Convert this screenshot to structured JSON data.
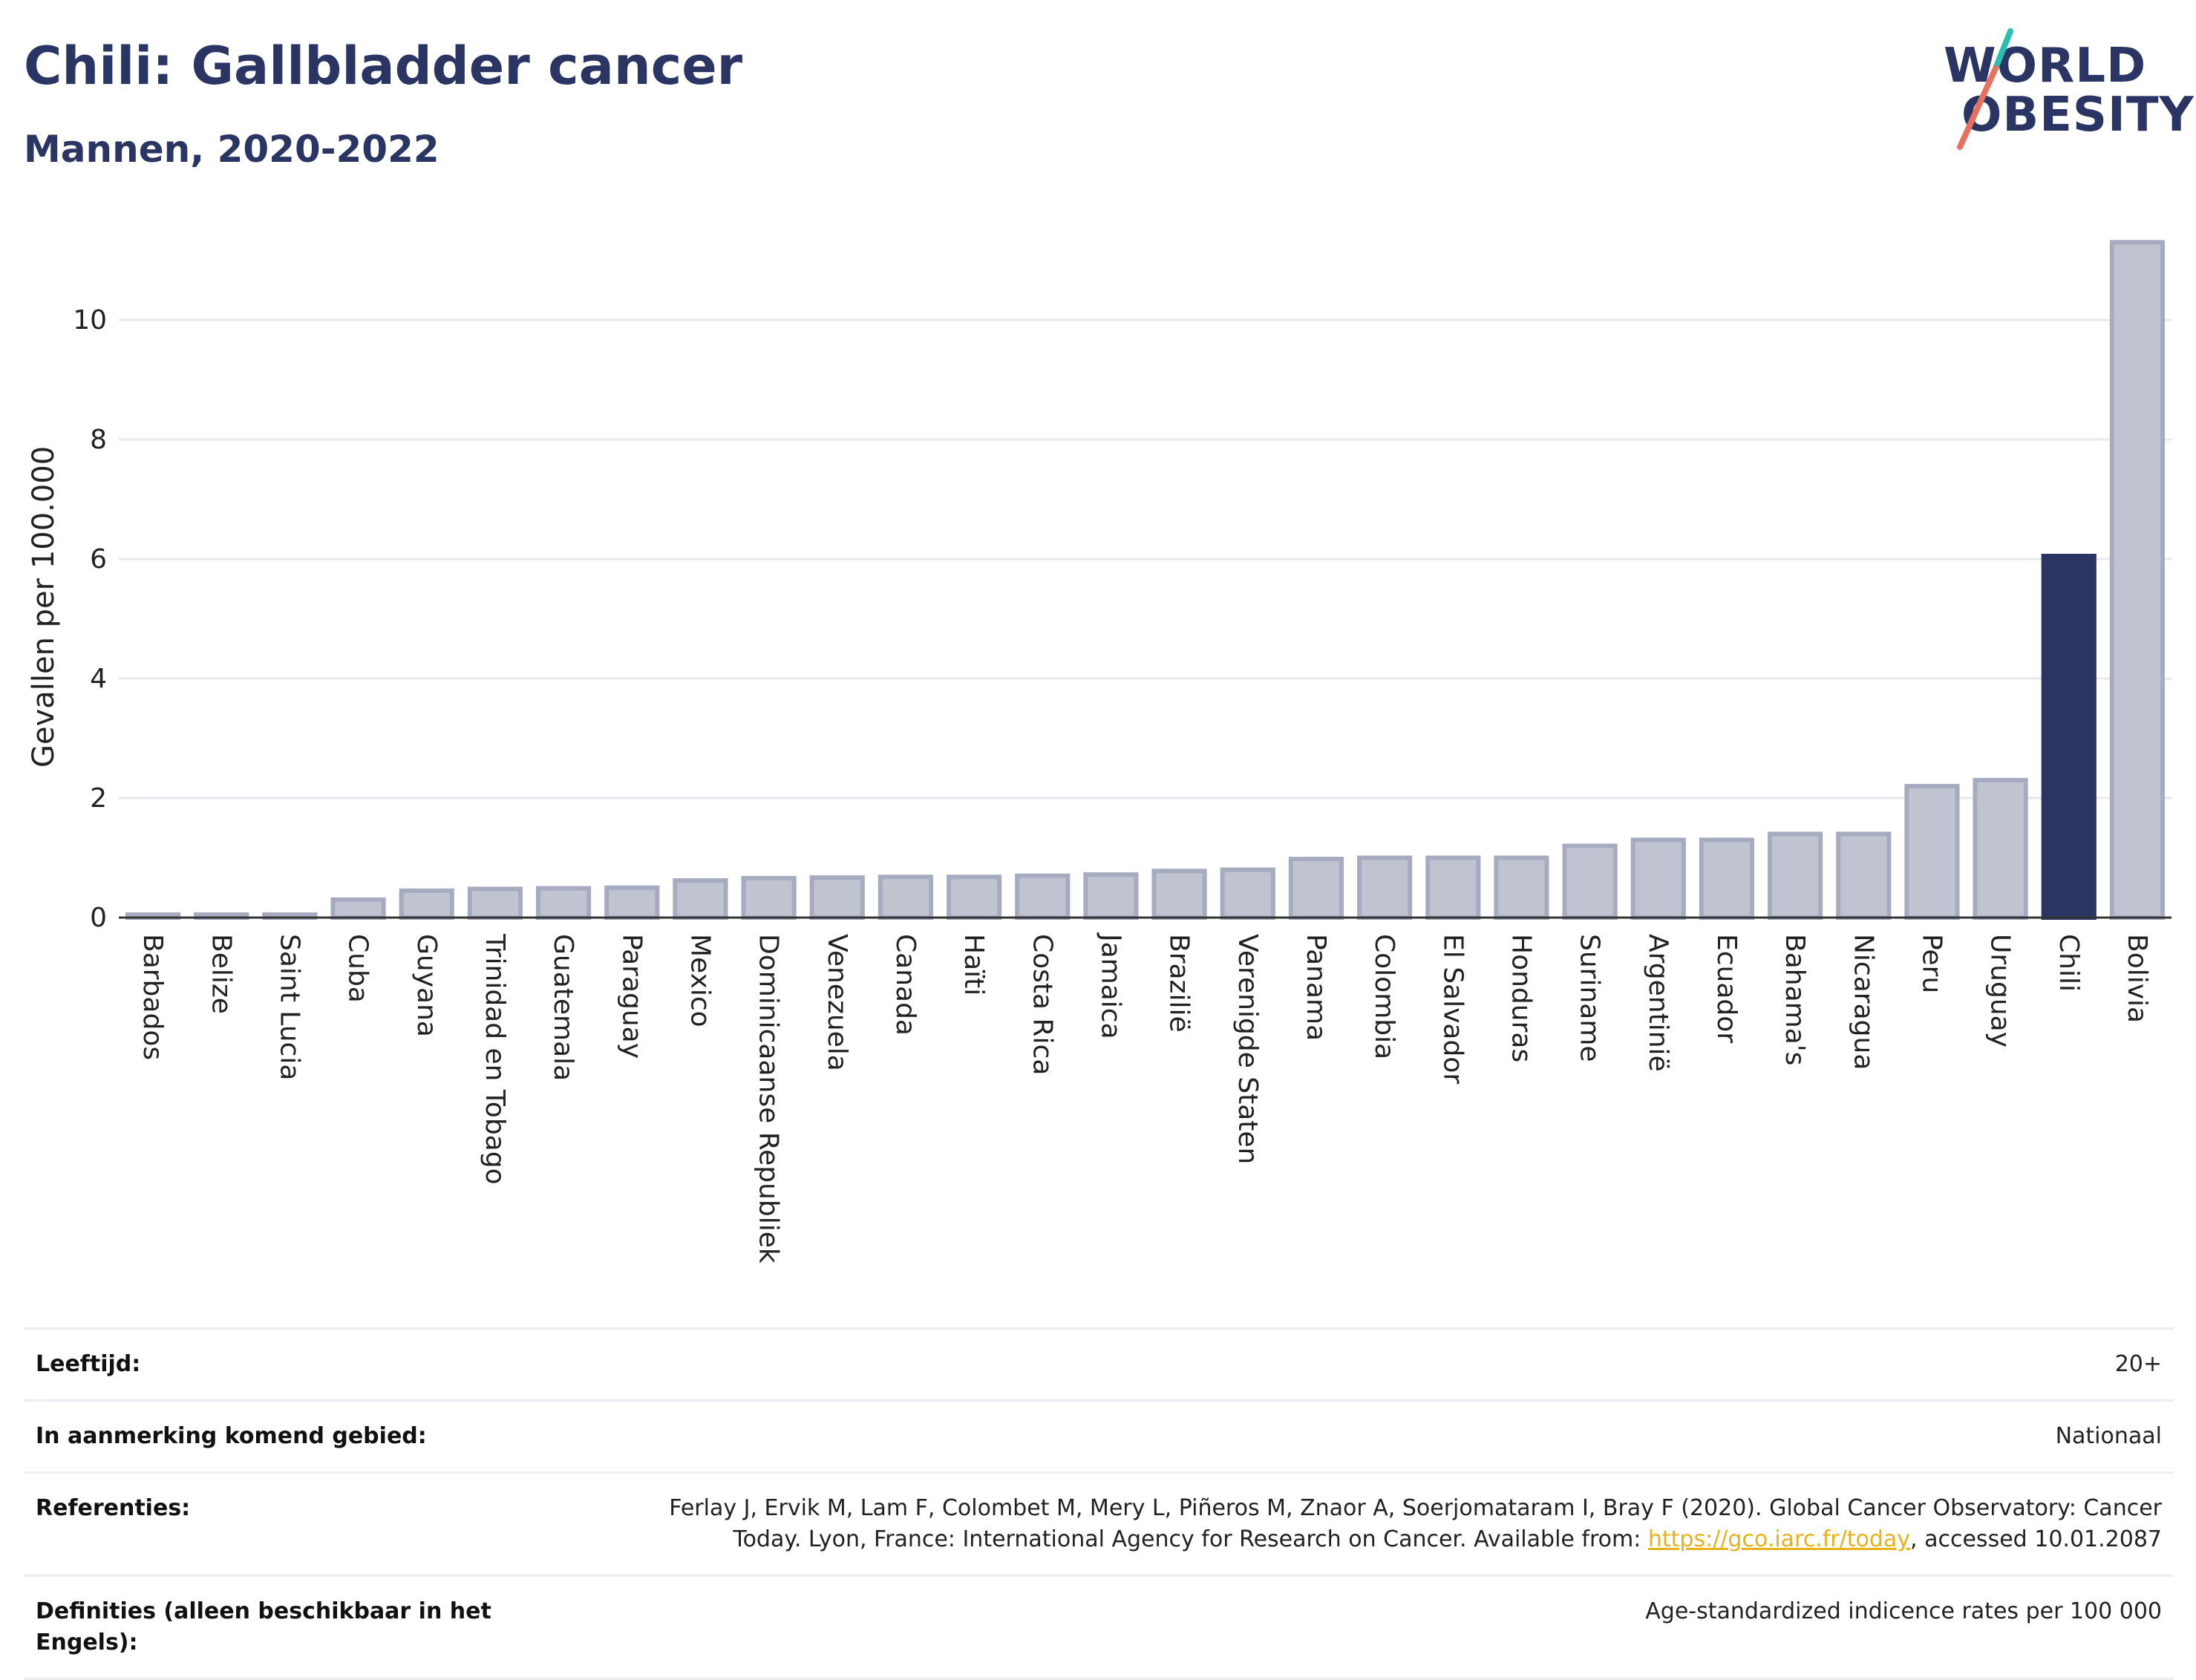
{
  "header": {
    "title": "Chili: Gallbladder cancer",
    "subtitle": "Mannen, 2020-2022"
  },
  "logo": {
    "line1": "WORLD",
    "line2": "OBESITY",
    "colors": {
      "navy": "#2a3563",
      "teal": "#2bbfb3",
      "coral": "#e8705f"
    }
  },
  "chart_data": {
    "type": "bar",
    "title": "",
    "xlabel": "",
    "ylabel": "Gevallen per 100.000",
    "ylim": [
      0,
      11.5
    ],
    "yticks": [
      0,
      2,
      4,
      6,
      8,
      10
    ],
    "grid": true,
    "highlight": "Chili",
    "colors": {
      "default_fill": "#c0c4d1",
      "default_stroke": "#a6abc0",
      "highlight": "#2a3563"
    },
    "categories": [
      "Barbados",
      "Belize",
      "Saint Lucia",
      "Cuba",
      "Guyana",
      "Trinidad en Tobago",
      "Guatemala",
      "Paraguay",
      "Mexico",
      "Dominicaanse Republiek",
      "Venezuela",
      "Canada",
      "Haïti",
      "Costa Rica",
      "Jamaica",
      "Brazilië",
      "Verenigde Staten",
      "Panama",
      "Colombia",
      "El Salvador",
      "Honduras",
      "Suriname",
      "Argentinië",
      "Ecuador",
      "Bahama's",
      "Nicaragua",
      "Peru",
      "Uruguay",
      "Chili",
      "Bolivia"
    ],
    "values": [
      0.05,
      0.05,
      0.05,
      0.3,
      0.45,
      0.48,
      0.49,
      0.5,
      0.62,
      0.66,
      0.67,
      0.68,
      0.68,
      0.7,
      0.72,
      0.78,
      0.8,
      0.98,
      1.0,
      1.0,
      1.0,
      1.2,
      1.3,
      1.3,
      1.4,
      1.4,
      2.2,
      2.3,
      6.05,
      11.3
    ]
  },
  "meta": {
    "rows": [
      {
        "label": "Leeftijd:",
        "value": "20+"
      },
      {
        "label": "In aanmerking komend gebied:",
        "value": "Nationaal"
      },
      {
        "label": "Referenties:",
        "value_before": "Ferlay J, Ervik M, Lam F, Colombet M, Mery L, Piñeros M, Znaor A, Soerjomataram I, Bray F (2020). Global Cancer Observatory: Cancer Today. Lyon, France: International Agency for Research on Cancer. Available from: ",
        "link": "https://gco.iarc.fr/today",
        "value_after": ", accessed 10.01.2087"
      },
      {
        "label": "Definities (alleen beschikbaar in het Engels):",
        "value": "Age-standardized indicence rates per 100 000"
      }
    ]
  }
}
